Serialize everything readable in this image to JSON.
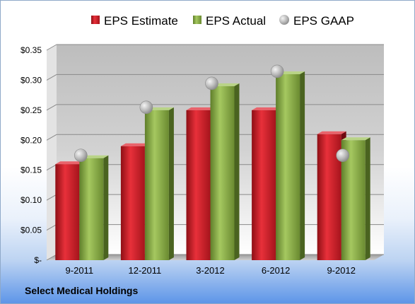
{
  "company": "Select Medical Holdings",
  "chart_data": {
    "type": "bar",
    "categories": [
      "9-2011",
      "12-2011",
      "3-2012",
      "6-2012",
      "9-2012"
    ],
    "series": [
      {
        "name": "EPS Estimate",
        "kind": "bar",
        "color": "#cc1f2b",
        "values": [
          0.16,
          0.19,
          0.25,
          0.25,
          0.21
        ]
      },
      {
        "name": "EPS Actual",
        "kind": "bar",
        "color": "#8cb04a",
        "values": [
          0.17,
          0.25,
          0.29,
          0.31,
          0.2
        ]
      },
      {
        "name": "EPS GAAP",
        "kind": "marker",
        "color": "#b5b5b5",
        "values": [
          0.17,
          0.25,
          0.29,
          0.31,
          0.17
        ]
      }
    ],
    "ylim": [
      0,
      0.35
    ],
    "yticks": [
      {
        "value": 0.35,
        "label": "$0.35"
      },
      {
        "value": 0.3,
        "label": "$0.30"
      },
      {
        "value": 0.25,
        "label": "$0.25"
      },
      {
        "value": 0.2,
        "label": "$0.20"
      },
      {
        "value": 0.15,
        "label": "$0.15"
      },
      {
        "value": 0.1,
        "label": "$0.10"
      },
      {
        "value": 0.05,
        "label": "$0.05"
      },
      {
        "value": 0,
        "label": "$-"
      }
    ],
    "grid": true,
    "legend_position": "top"
  }
}
